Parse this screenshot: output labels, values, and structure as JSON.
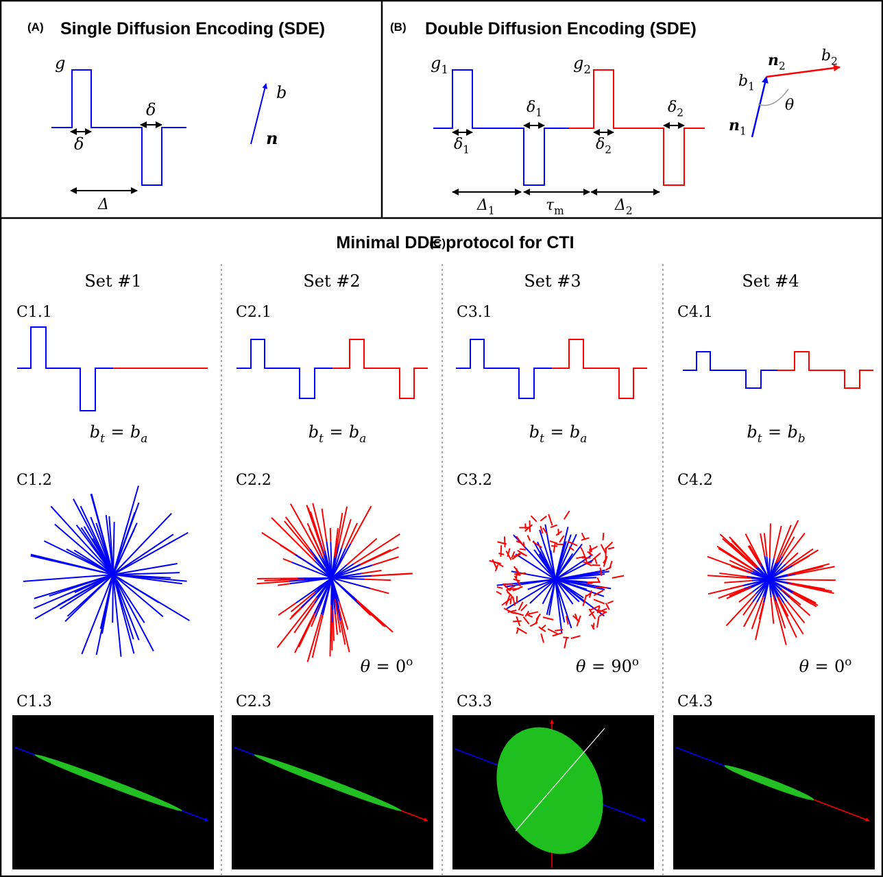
{
  "panel_a": {
    "label": "(A)",
    "title": "Single Diffusion Encoding (SDE)",
    "symbols": [
      {
        "t": "g"
      },
      {
        "t": "δ"
      },
      {
        "t": "δ"
      },
      {
        "t": "Δ"
      },
      {
        "t": "b"
      },
      {
        "t": "n"
      }
    ]
  },
  "panel_b": {
    "label": "(B)",
    "title": "Double Diffusion Encoding (SDE)",
    "symbols": [
      {
        "t": "g",
        "sub": "1"
      },
      {
        "t": "g",
        "sub": "2"
      },
      {
        "t": "δ",
        "sub": "1"
      },
      {
        "t": "δ",
        "sub": "1"
      },
      {
        "t": "δ",
        "sub": "2"
      },
      {
        "t": "δ",
        "sub": "2"
      },
      {
        "t": "Δ",
        "sub": "1"
      },
      {
        "t": "τ",
        "sub": "m"
      },
      {
        "t": "Δ",
        "sub": "2"
      },
      {
        "t": "n",
        "sub": "2"
      },
      {
        "t": "b",
        "sub": "2"
      },
      {
        "t": "b",
        "sub": "1"
      },
      {
        "t": "θ"
      },
      {
        "t": "n",
        "sub": "1"
      }
    ]
  },
  "panel_c": {
    "label": "(C)",
    "title": "Minimal DDE protocol for CTI",
    "sets": [
      {
        "name": "Set #1",
        "labels": [
          "C1.1",
          "C1.2",
          "C1.3"
        ],
        "formula": {
          "lhs": "b",
          "lhs_sub": "t",
          "op": "=",
          "rhs": "b",
          "rhs_sub": "a"
        }
      },
      {
        "name": "Set #2",
        "labels": [
          "C2.1",
          "C2.2",
          "C2.3"
        ],
        "formula": {
          "lhs": "b",
          "lhs_sub": "t",
          "op": "=",
          "rhs": "b",
          "rhs_sub": "a"
        },
        "angle": {
          "lhs": "θ",
          "op": "=",
          "rhs": "0",
          "rhs_sup": "o"
        }
      },
      {
        "name": "Set #3",
        "labels": [
          "C3.1",
          "C3.2",
          "C3.3"
        ],
        "formula": {
          "lhs": "b",
          "lhs_sub": "t",
          "op": "=",
          "rhs": "b",
          "rhs_sub": "a"
        },
        "angle": {
          "lhs": "θ",
          "op": "=",
          "rhs": "90",
          "rhs_sup": "o"
        }
      },
      {
        "name": "Set #4",
        "labels": [
          "C4.1",
          "C4.2",
          "C4.3"
        ],
        "formula": {
          "lhs": "b",
          "lhs_sub": "t",
          "op": "=",
          "rhs": "b",
          "rhs_sub": "b"
        },
        "angle": {
          "lhs": "θ",
          "op": "=",
          "rhs": "0",
          "rhs_sup": "o"
        }
      }
    ]
  }
}
